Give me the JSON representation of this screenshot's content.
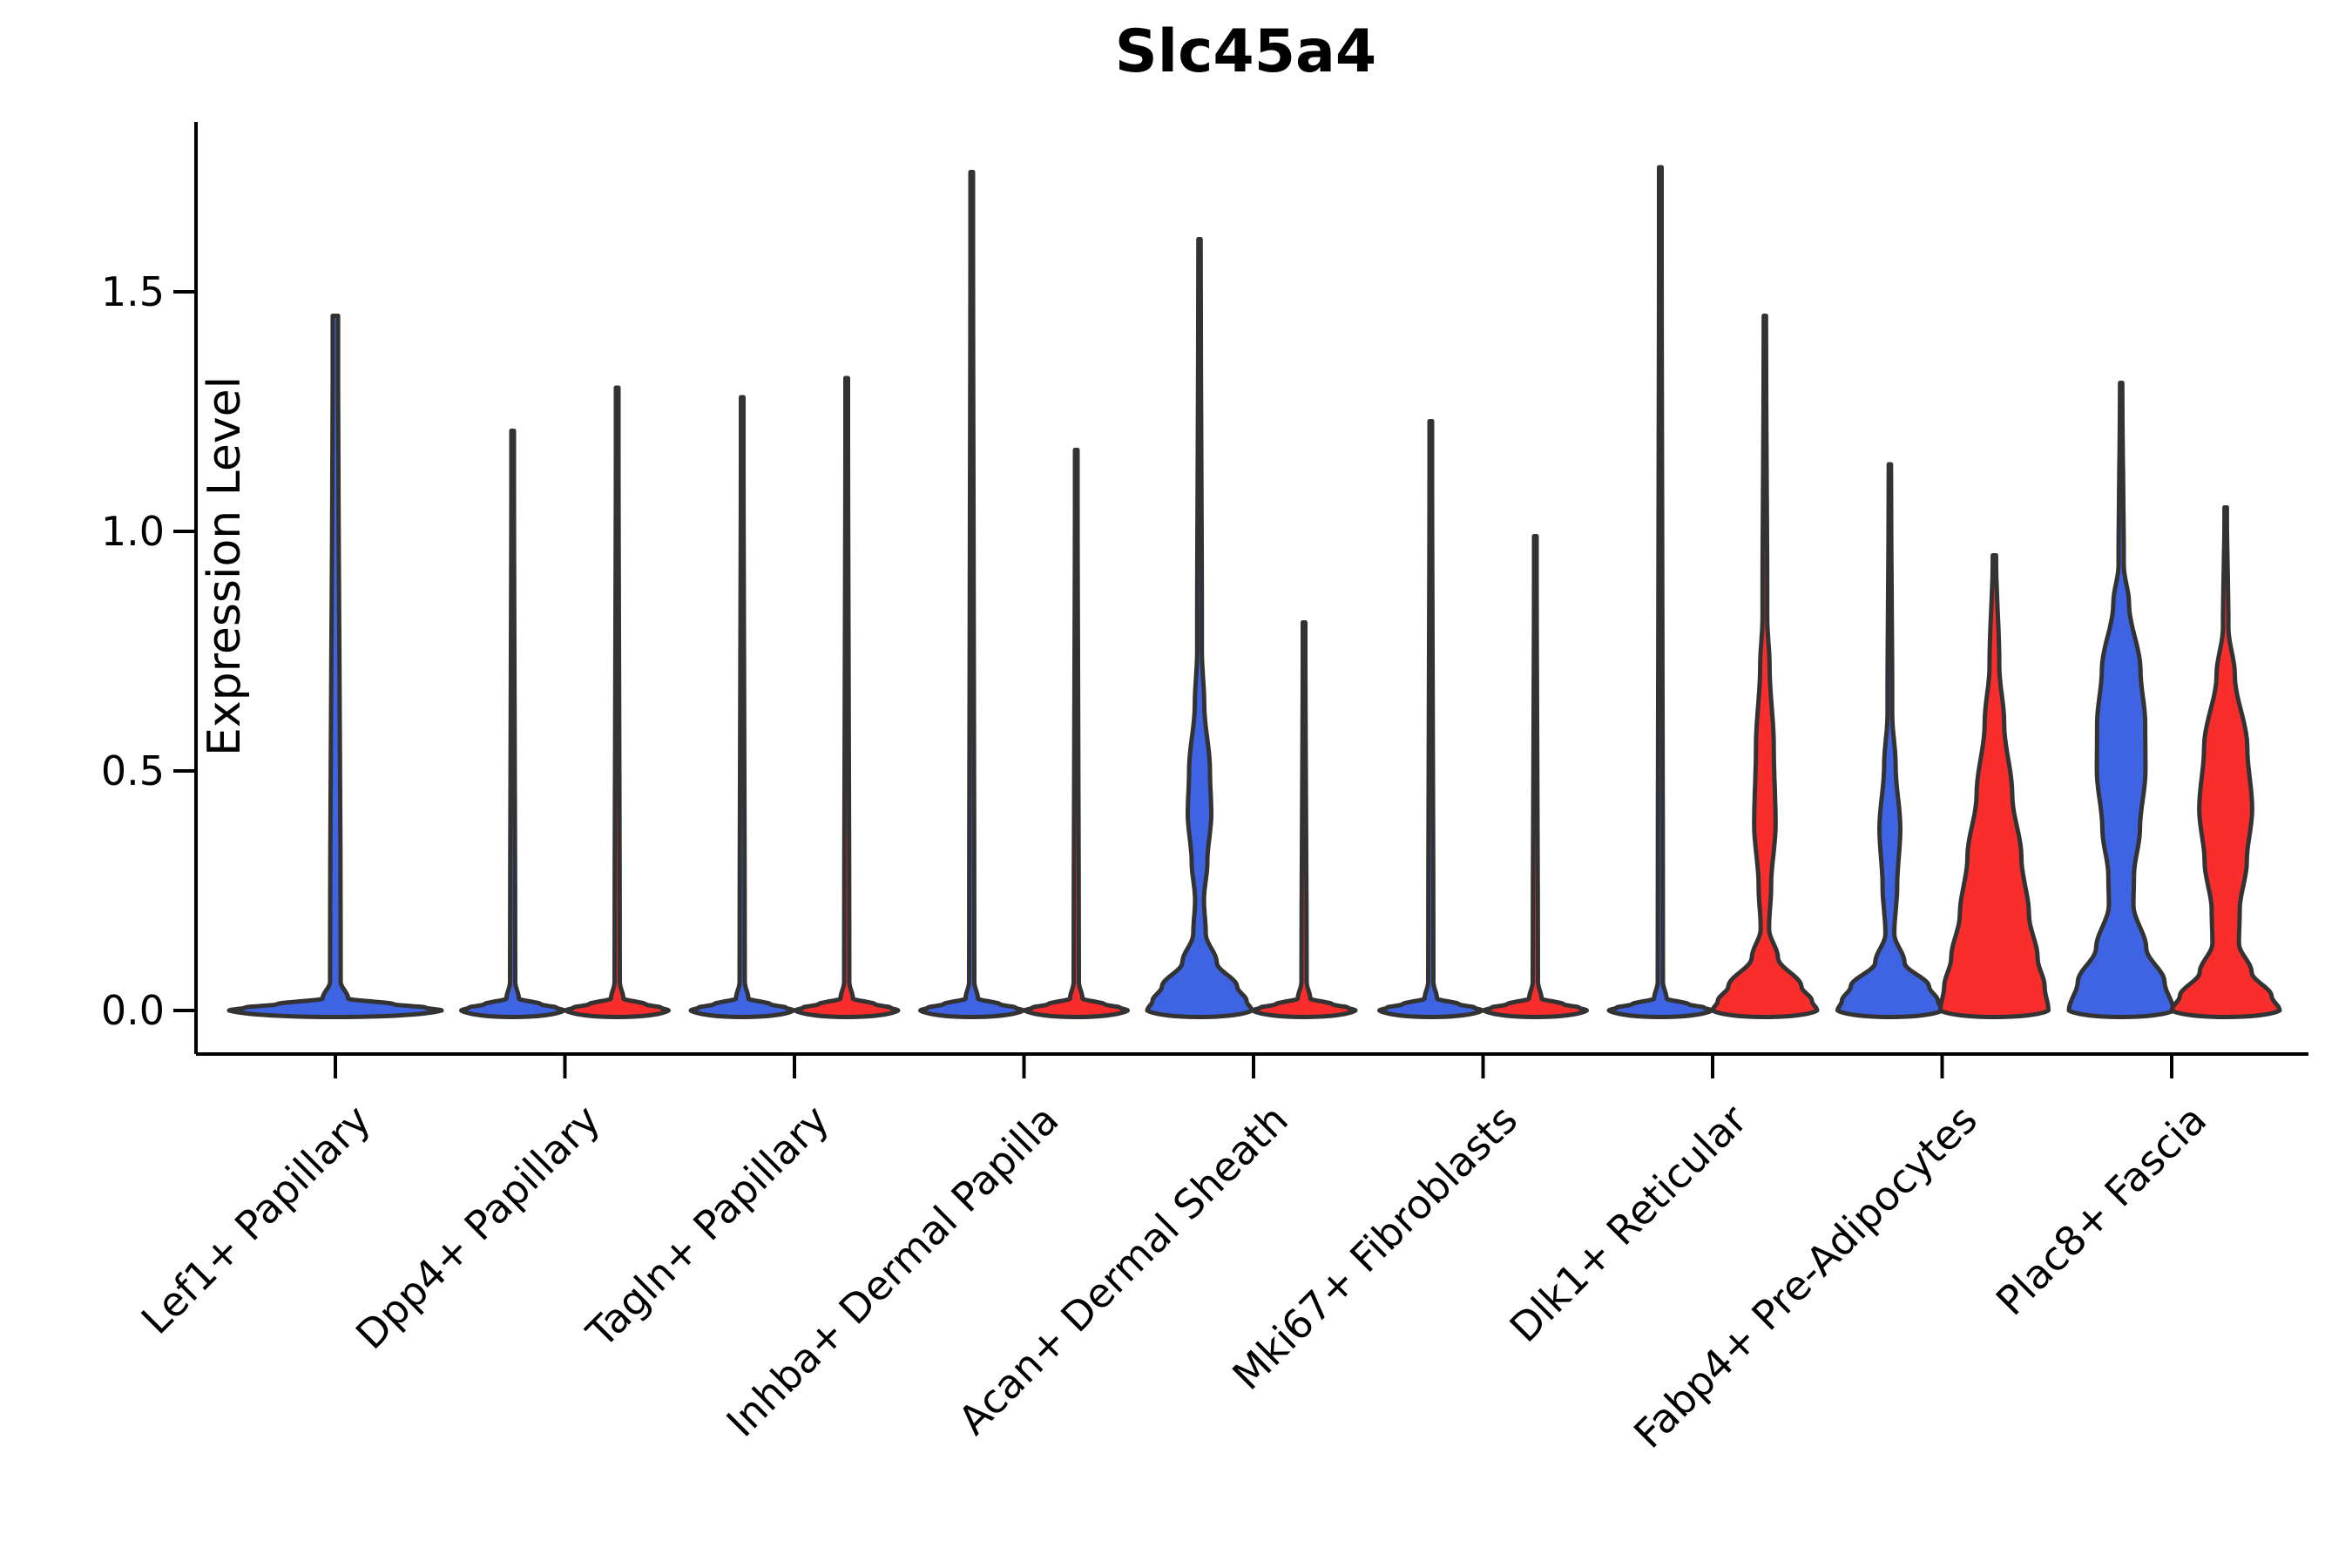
{
  "title": "Slc45a4",
  "colors": {
    "blue": "#3E64E4",
    "red": "#FA2D2D",
    "edge": "#333333",
    "axis": "#000000",
    "background": "#ffffff"
  },
  "chart_data": {
    "type": "violin",
    "title": "Slc45a4",
    "ylabel": "Expression Level",
    "xlabel": "",
    "ylim": [
      -0.09,
      1.87
    ],
    "grid": false,
    "legend": "none",
    "ytick_values": [
      0.0,
      0.5,
      1.0,
      1.5
    ],
    "ytick_labels": [
      "0.0",
      "0.5",
      "1.0",
      "1.5"
    ],
    "categories": [
      "Lef1+ Papillary",
      "Dpp4+ Papillary",
      "Tagln+ Papillary",
      "Inhba+ Dermal Papilla",
      "Acan+ Dermal Sheath",
      "Mki67+ Fibroblasts",
      "Dlk1+ Reticular",
      "Fabp4+ Pre-Adipocytes",
      "Plac8+ Fascia"
    ],
    "note": "Split violin plot; thin dark spikes are near-zero-density violins flattened at 0. profile = [expression_value, relative_half_width]; offset = px from group tick; half_width = px.",
    "groups": [
      {
        "label": "Lef1+ Papillary",
        "violins": [
          {
            "split": "single",
            "color": "blue",
            "max": 1.45,
            "shape": "spike",
            "offset": 0,
            "half_width": 122
          }
        ]
      },
      {
        "label": "Dpp4+ Papillary",
        "violins": [
          {
            "split": "left",
            "color": "blue",
            "max": 1.21,
            "shape": "spike",
            "offset": -60,
            "half_width": 59
          },
          {
            "split": "right",
            "color": "red",
            "max": 1.3,
            "shape": "spike",
            "offset": 60,
            "half_width": 59
          }
        ]
      },
      {
        "label": "Tagln+ Papillary",
        "violins": [
          {
            "split": "left",
            "color": "blue",
            "max": 1.28,
            "shape": "spike",
            "offset": -60,
            "half_width": 59
          },
          {
            "split": "right",
            "color": "red",
            "max": 1.32,
            "shape": "spike",
            "offset": 60,
            "half_width": 59
          }
        ]
      },
      {
        "label": "Inhba+ Dermal Papilla",
        "violins": [
          {
            "split": "left",
            "color": "blue",
            "max": 1.75,
            "shape": "spike",
            "offset": -60,
            "half_width": 59
          },
          {
            "split": "right",
            "color": "red",
            "max": 1.17,
            "shape": "spike",
            "offset": 60,
            "half_width": 59
          }
        ]
      },
      {
        "label": "Acan+ Dermal Sheath",
        "violins": [
          {
            "split": "left",
            "color": "blue",
            "max": 1.61,
            "shape": "kde",
            "offset": -62,
            "half_width": 60,
            "profile": [
              [
                1.61,
                0.022
              ],
              [
                0.75,
                0.045
              ],
              [
                0.64,
                0.09
              ],
              [
                0.5,
                0.2
              ],
              [
                0.41,
                0.225
              ],
              [
                0.31,
                0.15
              ],
              [
                0.23,
                0.085
              ],
              [
                0.16,
                0.12
              ],
              [
                0.1,
                0.33
              ],
              [
                0.05,
                0.72
              ],
              [
                0.02,
                0.9
              ],
              [
                0,
                1
              ]
            ]
          },
          {
            "split": "right",
            "color": "red",
            "max": 0.81,
            "shape": "spike",
            "offset": 58,
            "half_width": 59
          }
        ]
      },
      {
        "label": "Mki67+ Fibroblasts",
        "violins": [
          {
            "split": "left",
            "color": "blue",
            "max": 1.23,
            "shape": "spike",
            "offset": -60,
            "half_width": 59
          },
          {
            "split": "right",
            "color": "red",
            "max": 0.99,
            "shape": "spike",
            "offset": 60,
            "half_width": 59
          }
        ]
      },
      {
        "label": "Dlk1+ Reticular",
        "violins": [
          {
            "split": "left",
            "color": "blue",
            "max": 1.76,
            "shape": "spike",
            "offset": -60,
            "half_width": 59
          },
          {
            "split": "right",
            "color": "red",
            "max": 1.45,
            "shape": "kde",
            "offset": 60,
            "half_width": 60,
            "profile": [
              [
                1.45,
                0.022
              ],
              [
                0.82,
                0.045
              ],
              [
                0.72,
                0.09
              ],
              [
                0.55,
                0.17
              ],
              [
                0.39,
                0.205
              ],
              [
                0.26,
                0.12
              ],
              [
                0.17,
                0.08
              ],
              [
                0.11,
                0.25
              ],
              [
                0.05,
                0.7
              ],
              [
                0.02,
                0.9
              ],
              [
                0,
                1
              ]
            ]
          }
        ]
      },
      {
        "label": "Fabp4+ Pre-Adipocytes",
        "violins": [
          {
            "split": "left",
            "color": "blue",
            "max": 1.14,
            "shape": "kde",
            "offset": -60,
            "half_width": 60,
            "profile": [
              [
                1.14,
                0.022
              ],
              [
                0.62,
                0.045
              ],
              [
                0.51,
                0.11
              ],
              [
                0.38,
                0.2
              ],
              [
                0.26,
                0.14
              ],
              [
                0.16,
                0.085
              ],
              [
                0.1,
                0.28
              ],
              [
                0.05,
                0.75
              ],
              [
                0.02,
                0.92
              ],
              [
                0,
                1
              ]
            ]
          },
          {
            "split": "right",
            "color": "red",
            "max": 0.95,
            "shape": "kde",
            "offset": 60,
            "half_width": 62,
            "profile": [
              [
                0.95,
                0.03
              ],
              [
                0.72,
                0.09
              ],
              [
                0.6,
                0.18
              ],
              [
                0.45,
                0.33
              ],
              [
                0.32,
                0.5
              ],
              [
                0.2,
                0.64
              ],
              [
                0.11,
                0.8
              ],
              [
                0.05,
                0.93
              ],
              [
                0,
                1
              ]
            ]
          }
        ]
      },
      {
        "label": "Plac8+ Fascia",
        "violins": [
          {
            "split": "left",
            "color": "blue",
            "max": 1.31,
            "shape": "kde",
            "offset": -58,
            "half_width": 60,
            "profile": [
              [
                1.31,
                0.022
              ],
              [
                0.93,
                0.05
              ],
              [
                0.85,
                0.15
              ],
              [
                0.71,
                0.37
              ],
              [
                0.6,
                0.46
              ],
              [
                0.5,
                0.465
              ],
              [
                0.38,
                0.36
              ],
              [
                0.28,
                0.245
              ],
              [
                0.22,
                0.235
              ],
              [
                0.13,
                0.48
              ],
              [
                0.06,
                0.83
              ],
              [
                0,
                1
              ]
            ]
          },
          {
            "split": "right",
            "color": "red",
            "max": 1.05,
            "shape": "kde",
            "offset": 62,
            "half_width": 62,
            "profile": [
              [
                1.05,
                0.022
              ],
              [
                0.8,
                0.05
              ],
              [
                0.7,
                0.17
              ],
              [
                0.55,
                0.4
              ],
              [
                0.42,
                0.49
              ],
              [
                0.31,
                0.39
              ],
              [
                0.21,
                0.26
              ],
              [
                0.14,
                0.245
              ],
              [
                0.08,
                0.48
              ],
              [
                0.03,
                0.85
              ],
              [
                0,
                1
              ]
            ]
          }
        ]
      }
    ]
  }
}
